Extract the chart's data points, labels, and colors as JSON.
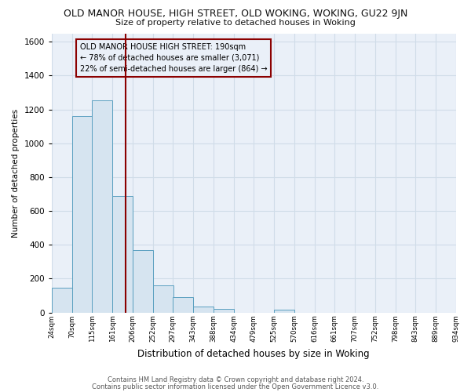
{
  "title": "OLD MANOR HOUSE, HIGH STREET, OLD WOKING, WOKING, GU22 9JN",
  "subtitle": "Size of property relative to detached houses in Woking",
  "xlabel": "Distribution of detached houses by size in Woking",
  "ylabel": "Number of detached properties",
  "footnote1": "Contains HM Land Registry data © Crown copyright and database right 2024.",
  "footnote2": "Contains public sector information licensed under the Open Government Licence v3.0.",
  "bar_edges": [
    24,
    70,
    115,
    161,
    206,
    252,
    297,
    343,
    388,
    434,
    479,
    525,
    570,
    616,
    661,
    707,
    752,
    798,
    843,
    889,
    934
  ],
  "bar_heights": [
    147,
    1160,
    1255,
    690,
    370,
    160,
    90,
    35,
    20,
    0,
    0,
    15,
    0,
    0,
    0,
    0,
    0,
    0,
    0,
    0
  ],
  "tick_labels": [
    "24sqm",
    "70sqm",
    "115sqm",
    "161sqm",
    "206sqm",
    "252sqm",
    "297sqm",
    "343sqm",
    "388sqm",
    "434sqm",
    "479sqm",
    "525sqm",
    "570sqm",
    "616sqm",
    "661sqm",
    "707sqm",
    "752sqm",
    "798sqm",
    "843sqm",
    "889sqm",
    "934sqm"
  ],
  "bar_color": "#d6e4f0",
  "bar_edge_color": "#5a9fc0",
  "property_line_x": 190,
  "property_line_color": "#8b0000",
  "ylim": [
    0,
    1650
  ],
  "yticks": [
    0,
    200,
    400,
    600,
    800,
    1000,
    1200,
    1400,
    1600
  ],
  "xlim_min": 24,
  "xlim_max": 934,
  "annotation_box_text_line1": "OLD MANOR HOUSE HIGH STREET: 190sqm",
  "annotation_box_text_line2": "← 78% of detached houses are smaller (3,071)",
  "annotation_box_text_line3": "22% of semi-detached houses are larger (864) →",
  "grid_color": "#d0dce8",
  "background_color": "#ffffff",
  "plot_bg_color": "#eaf0f8"
}
